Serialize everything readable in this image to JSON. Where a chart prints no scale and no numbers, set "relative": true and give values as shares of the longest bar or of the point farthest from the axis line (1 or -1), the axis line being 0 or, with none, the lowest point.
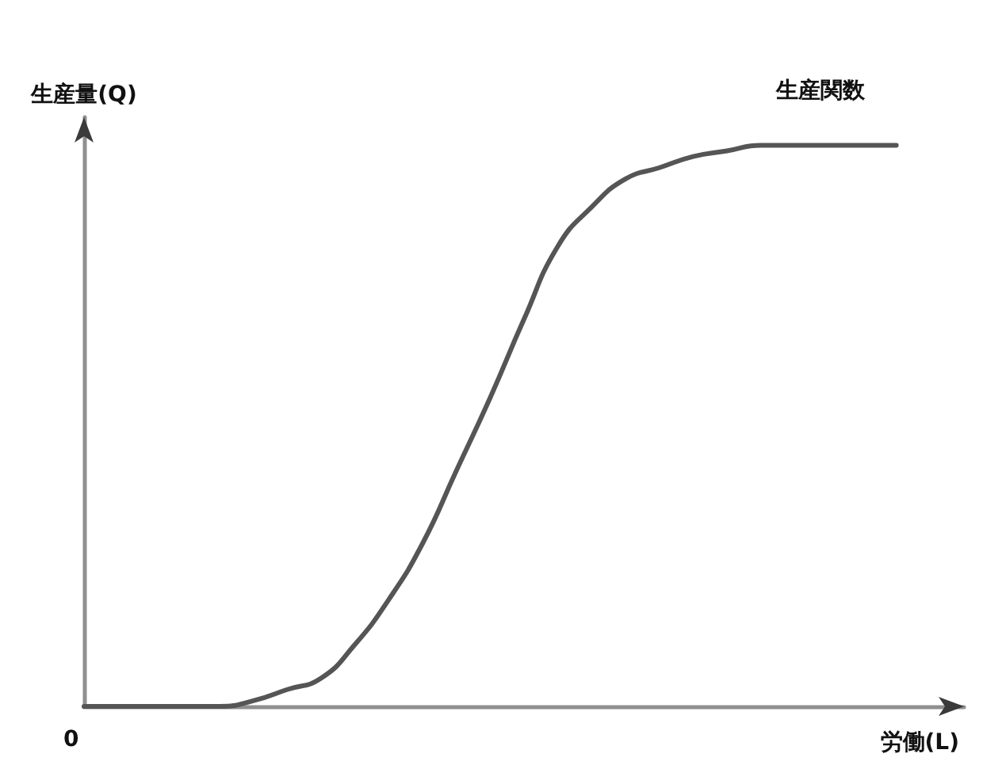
{
  "chart_data": {
    "type": "line",
    "xlabel": "労働(L)",
    "ylabel": "生産量(Q)",
    "relative": true,
    "grid": false,
    "marker": "none",
    "categories": [
      null,
      null,
      null,
      null,
      null,
      null,
      null,
      null,
      null,
      null,
      null,
      null,
      null,
      null,
      null,
      null,
      null,
      null,
      null,
      null,
      null,
      null,
      null,
      null,
      null,
      null,
      null
    ],
    "series": [
      {
        "name": "生産関数",
        "color": "#555555",
        "values": [
          0,
          0,
          0,
          0,
          0,
          0.01,
          0.03,
          0.05,
          0.11,
          0.19,
          0.29,
          0.42,
          0.55,
          0.69,
          0.82,
          0.89,
          0.94,
          0.96,
          0.98,
          0.99,
          1,
          1,
          1,
          1,
          1,
          null,
          null
        ]
      }
    ],
    "annotations": [
      "0"
    ]
  }
}
